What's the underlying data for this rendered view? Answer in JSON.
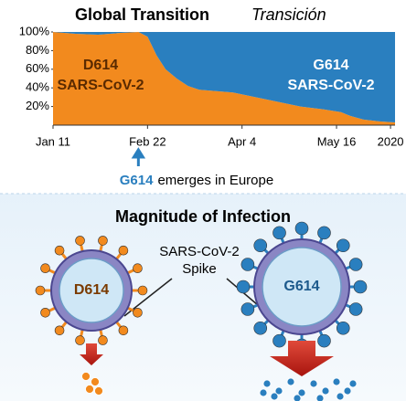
{
  "chart_data": {
    "type": "area",
    "title": "Global Transition",
    "subtitle": "Transición",
    "x": [
      0,
      10,
      20,
      30,
      38,
      42,
      44,
      46,
      50,
      55,
      60,
      65,
      70,
      80,
      90,
      100,
      110,
      120,
      128,
      132,
      138,
      145,
      152
    ],
    "series": [
      {
        "name": "D614",
        "subname": "SARS-CoV-2",
        "color": "#f28a1e",
        "values": [
          100,
          98,
          97,
          99,
          100,
          95,
          85,
          75,
          60,
          50,
          42,
          38,
          37,
          35,
          30,
          25,
          20,
          17,
          14,
          10,
          6,
          4,
          3
        ]
      },
      {
        "name": "G614",
        "subname": "SARS-CoV-2",
        "color": "#2a7fbf",
        "values": [
          0,
          2,
          3,
          1,
          0,
          5,
          15,
          25,
          40,
          50,
          58,
          62,
          63,
          65,
          70,
          75,
          80,
          83,
          86,
          90,
          94,
          96,
          97
        ]
      }
    ],
    "xlim": [
      0,
      152
    ],
    "xticks": [
      {
        "value": 0,
        "label": "Jan 11"
      },
      {
        "value": 42,
        "label": "Feb 22"
      },
      {
        "value": 84,
        "label": "Apr 4"
      },
      {
        "value": 126,
        "label": "May 16"
      },
      {
        "value": 150,
        "label": "2020"
      }
    ],
    "ylim": [
      0,
      100
    ],
    "yticks": [
      {
        "value": 20,
        "label": "20%"
      },
      {
        "value": 40,
        "label": "40%"
      },
      {
        "value": 60,
        "label": "60%"
      },
      {
        "value": 80,
        "label": "80%"
      },
      {
        "value": 100,
        "label": "100%"
      }
    ],
    "annotation": {
      "x": 42,
      "highlight": "G614",
      "text": "emerges in Europe"
    }
  },
  "illustration": {
    "title": "Magnitude of Infection",
    "spike_label": [
      "SARS-CoV-2",
      "Spike"
    ],
    "variants": [
      {
        "label": "D614",
        "color": "#f28a1e"
      },
      {
        "label": "G614",
        "color": "#2a7fbf"
      }
    ]
  }
}
